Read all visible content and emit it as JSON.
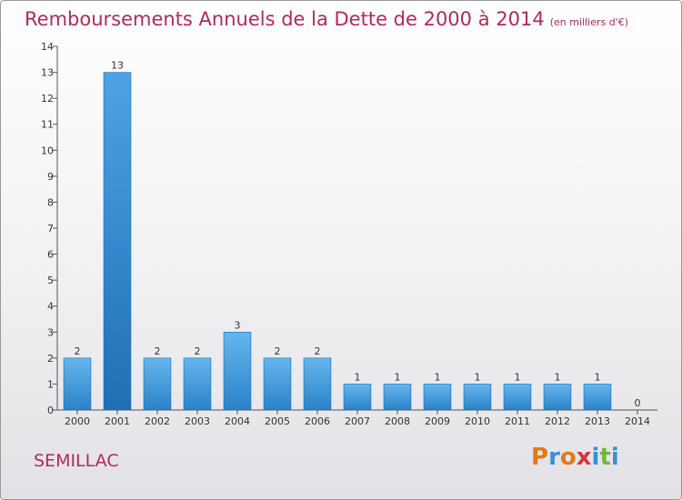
{
  "header": {
    "title": "Remboursements Annuels de la Dette de 2000 à 2014",
    "unit": "(en milliers d'€)"
  },
  "footer": {
    "commune": "SEMILLAC",
    "logo": "Proxiti",
    "logo_colors": [
      "#e07b1a",
      "#3c8fd6",
      "#e07b1a",
      "#d43a3a",
      "#3c8fd6",
      "#7bb339",
      "#3c8fd6"
    ]
  },
  "colors": {
    "bar_top": "#66b6ee",
    "bar_bottom": "#2a82c8",
    "bar_highlight": "#1f6fb5",
    "title": "#b2295a"
  },
  "chart_data": {
    "type": "bar",
    "title": "Remboursements Annuels de la Dette de 2000 à 2014",
    "subtitle": "(en milliers d'€)",
    "categories": [
      "2000",
      "2001",
      "2002",
      "2003",
      "2004",
      "2005",
      "2006",
      "2007",
      "2008",
      "2009",
      "2010",
      "2011",
      "2012",
      "2013",
      "2014"
    ],
    "values": [
      2,
      13,
      2,
      2,
      3,
      2,
      2,
      1,
      1,
      1,
      1,
      1,
      1,
      1,
      0
    ],
    "data_labels": [
      "2",
      "13",
      "2",
      "2",
      "3",
      "2",
      "2",
      "1",
      "1",
      "1",
      "1",
      "1",
      "1",
      "1",
      "0"
    ],
    "yticks": [
      "0",
      "1",
      "2",
      "3",
      "4",
      "5",
      "6",
      "7",
      "8",
      "9",
      "10",
      "11",
      "12",
      "13",
      "14"
    ],
    "ylim": [
      0,
      14
    ],
    "xlabel": "",
    "ylabel": "",
    "grid": false,
    "highlight_category": "2001"
  }
}
